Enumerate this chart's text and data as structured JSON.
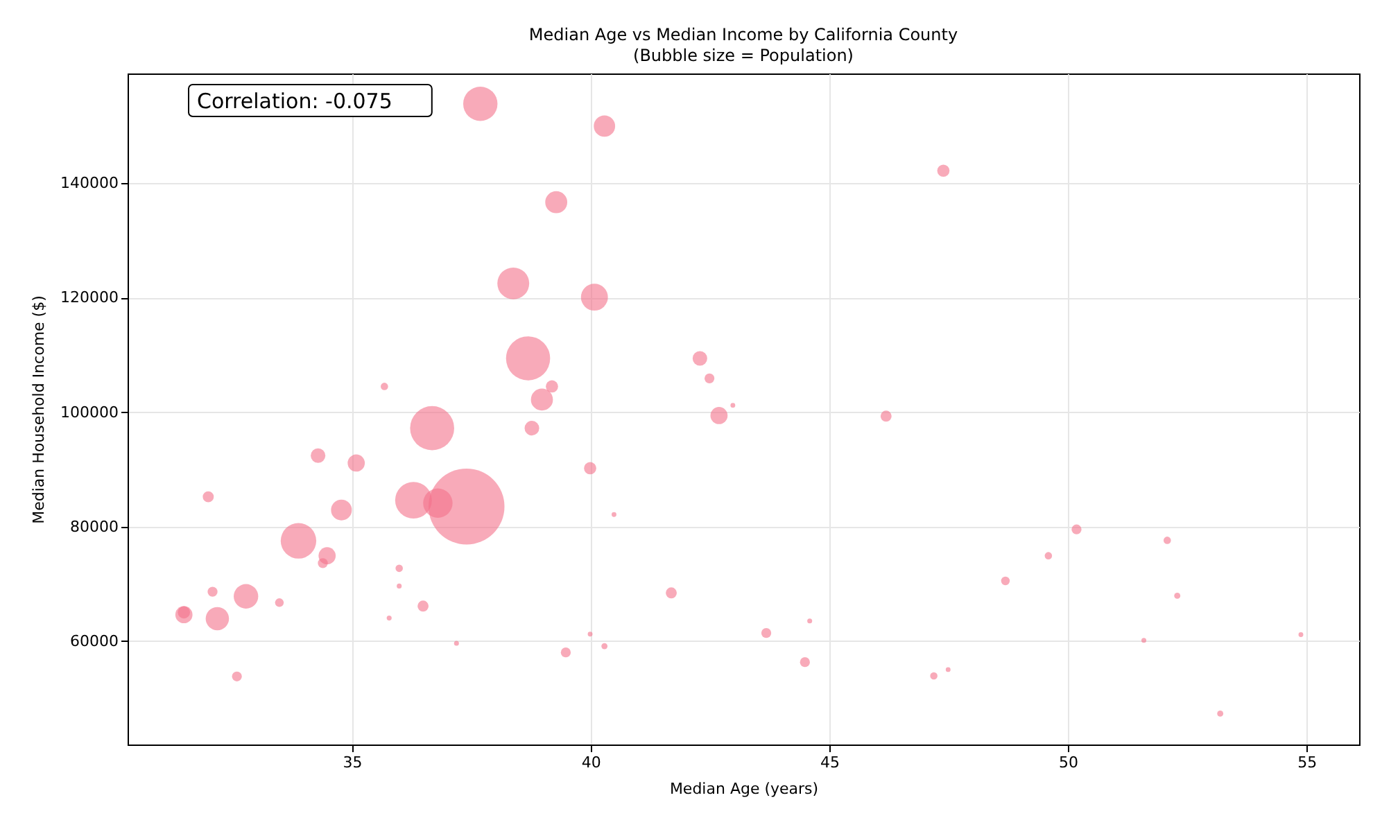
{
  "chart_data": {
    "type": "bubble",
    "title": "Median Age vs Median Income by California County",
    "subtitle": "(Bubble size = Population)",
    "xlabel": "Median Age (years)",
    "ylabel": "Median Household Income ($)",
    "annotations": [
      "Correlation: -0.075"
    ],
    "x": [
      37.69,
      40.29,
      39.28,
      38.38,
      40.08,
      38.69,
      35.68,
      39.19,
      38.98,
      42.29,
      42.49,
      42.98,
      42.69,
      36.68,
      38.77,
      34.29,
      35.09,
      31.99,
      39.99,
      34.78,
      36.29,
      36.8,
      37.4,
      40.49,
      33.88,
      34.48,
      34.39,
      35.99,
      35.99,
      32.08,
      32.78,
      33.48,
      31.48,
      31.48,
      32.18,
      36.49,
      35.78,
      37.19,
      39.99,
      40.29,
      39.48,
      41.69,
      32.59,
      47.39,
      46.19,
      43.68,
      44.59,
      44.49,
      47.19,
      47.49,
      48.69,
      49.59,
      50.18,
      52.08,
      52.29,
      51.59,
      53.19,
      54.88
    ],
    "series": [
      {
        "color": "#f4728a",
        "values": [
          153900,
          150000,
          136700,
          122500,
          120100,
          109400,
          104500,
          104500,
          102200,
          109400,
          105900,
          101200,
          99400,
          97200,
          97200,
          92400,
          91100,
          85200,
          90200,
          82900,
          84600,
          84100,
          83500,
          82100,
          77500,
          74900,
          73600,
          72700,
          69600,
          68600,
          67800,
          66700,
          64600,
          65000,
          63900,
          66100,
          64000,
          59600,
          61200,
          59100,
          58000,
          68400,
          53800,
          142200,
          99300,
          61400,
          63500,
          56300,
          53900,
          55000,
          70500,
          74900,
          79500,
          77600,
          67900,
          60100,
          47300,
          61100
        ],
        "sizes": [
          0.204,
          0.079,
          0.084,
          0.176,
          0.126,
          0.337,
          0.0094,
          0.026,
          0.084,
          0.037,
          0.017,
          0.004,
          0.051,
          0.337,
          0.037,
          0.037,
          0.051,
          0.021,
          0.026,
          0.075,
          0.234,
          0.15,
          1,
          0.004,
          0.219,
          0.051,
          0.017,
          0.0094,
          0.0042,
          0.017,
          0.104,
          0.013,
          0.051,
          0.026,
          0.094,
          0.021,
          0.0042,
          0.0042,
          0.004,
          0.0065,
          0.017,
          0.021,
          0.017,
          0.026,
          0.021,
          0.017,
          0.0042,
          0.017,
          0.0094,
          0.004,
          0.013,
          0.0094,
          0.017,
          0.0094,
          0.0065,
          0.0042,
          0.0065,
          0.004
        ]
      }
    ],
    "xlim": [
      30.3,
      56.1
    ],
    "ylim": [
      41900,
      159200
    ],
    "xticks": [
      35,
      40,
      45,
      50,
      55
    ],
    "yticks": [
      60000,
      80000,
      100000,
      120000,
      140000
    ],
    "grid": true
  }
}
